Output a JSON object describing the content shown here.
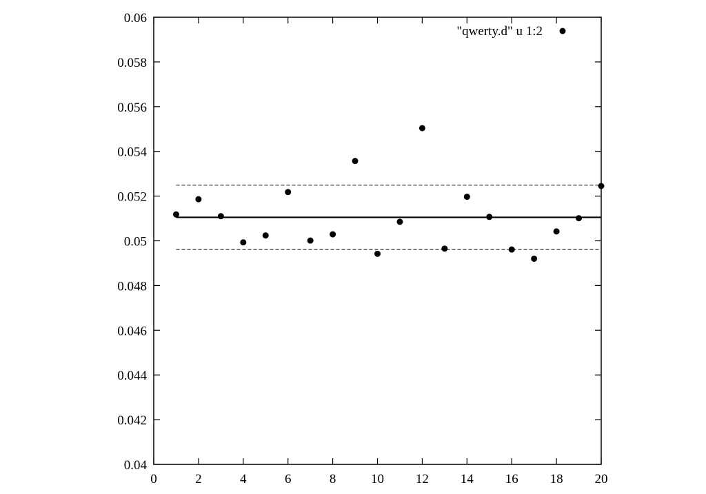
{
  "chart_data": {
    "type": "scatter",
    "title": "",
    "xlabel": "",
    "ylabel": "",
    "xlim": [
      0,
      20
    ],
    "ylim": [
      0.04,
      0.06
    ],
    "x_ticks": [
      {
        "value": 0,
        "label": "0"
      },
      {
        "value": 2,
        "label": "2"
      },
      {
        "value": 4,
        "label": "4"
      },
      {
        "value": 6,
        "label": "6"
      },
      {
        "value": 8,
        "label": "8"
      },
      {
        "value": 10,
        "label": "10"
      },
      {
        "value": 12,
        "label": "12"
      },
      {
        "value": 14,
        "label": "14"
      },
      {
        "value": 16,
        "label": "16"
      },
      {
        "value": 18,
        "label": "18"
      },
      {
        "value": 20,
        "label": "20"
      }
    ],
    "y_ticks": [
      {
        "value": 0.04,
        "label": "0.04"
      },
      {
        "value": 0.042,
        "label": "0.042"
      },
      {
        "value": 0.044,
        "label": "0.044"
      },
      {
        "value": 0.046,
        "label": "0.046"
      },
      {
        "value": 0.048,
        "label": "0.048"
      },
      {
        "value": 0.05,
        "label": "0.05"
      },
      {
        "value": 0.052,
        "label": "0.052"
      },
      {
        "value": 0.054,
        "label": "0.054"
      },
      {
        "value": 0.056,
        "label": "0.056"
      },
      {
        "value": 0.058,
        "label": "0.058"
      },
      {
        "value": 0.06,
        "label": "0.06"
      }
    ],
    "grid": false,
    "legend_position": "top-right",
    "series": [
      {
        "name": "\"qwerty.d\" u 1:2",
        "marker": "filled-circle",
        "color": "#000000",
        "x": [
          1,
          2,
          3,
          4,
          5,
          6,
          7,
          8,
          9,
          10,
          11,
          12,
          13,
          14,
          15,
          16,
          17,
          18,
          19,
          20
        ],
        "y": [
          0.05118,
          0.05186,
          0.0511,
          0.04993,
          0.05024,
          0.05218,
          0.05001,
          0.05029,
          0.05357,
          0.04942,
          0.05085,
          0.05504,
          0.04965,
          0.05197,
          0.05107,
          0.04961,
          0.0492,
          0.05042,
          0.05101,
          0.05245
        ]
      }
    ],
    "reference_lines": [
      {
        "y": 0.05105,
        "style": "solid",
        "color": "#000000"
      },
      {
        "y": 0.05249,
        "style": "dashed",
        "color": "#000000"
      },
      {
        "y": 0.04961,
        "style": "dashed",
        "color": "#000000"
      }
    ]
  }
}
